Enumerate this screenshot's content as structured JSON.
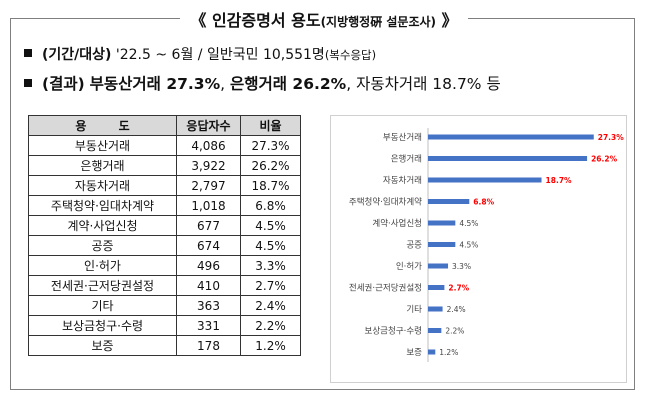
{
  "title": {
    "main": "《 인감증명서 용도",
    "sub": "(지방행정硏 설문조사)",
    "close": " 》"
  },
  "lines": {
    "line1": {
      "label": "(기간/대상)",
      "period": "'22.5 ~ 6월",
      "sep": " / ",
      "target": "일반국민 10,551명",
      "note": "(복수응답)"
    },
    "line2": {
      "label": "(결과)",
      "r1": "부동산거래 27.3%",
      "r2": "은행거래 26.2%",
      "rest": "자동차거래 18.7% 등"
    }
  },
  "table": {
    "headers": [
      "용 도",
      "응답자수",
      "비율"
    ],
    "rows": [
      [
        "부동산거래",
        "4,086",
        "27.3%"
      ],
      [
        "은행거래",
        "3,922",
        "26.2%"
      ],
      [
        "자동차거래",
        "2,797",
        "18.7%"
      ],
      [
        "주택청약·임대차계약",
        "1,018",
        "6.8%"
      ],
      [
        "계약·사업신청",
        "677",
        "4.5%"
      ],
      [
        "공증",
        "674",
        "4.5%"
      ],
      [
        "인·허가",
        "496",
        "3.3%"
      ],
      [
        "전세권·근저당권설정",
        "410",
        "2.7%"
      ],
      [
        "기타",
        "363",
        "2.4%"
      ],
      [
        "보상금청구·수령",
        "331",
        "2.2%"
      ],
      [
        "보증",
        "178",
        "1.2%"
      ]
    ]
  },
  "colors": {
    "bar": "#4472c4",
    "highlight": "#ff0000",
    "normal_label": "#444444"
  },
  "chart_data": {
    "type": "bar",
    "orientation": "horizontal",
    "categories": [
      "부동산거래",
      "은행거래",
      "자동차거래",
      "주택청약·임대차계약",
      "계약·사업신청",
      "공증",
      "인·허가",
      "전세권·근저당권설정",
      "기타",
      "보상금청구·수령",
      "보증"
    ],
    "values": [
      27.3,
      26.2,
      18.7,
      6.8,
      4.5,
      4.5,
      3.3,
      2.7,
      2.4,
      2.2,
      1.2
    ],
    "labels": [
      "27.3%",
      "26.2%",
      "18.7%",
      "6.8%",
      "4.5%",
      "4.5%",
      "3.3%",
      "2.7%",
      "2.4%",
      "2.2%",
      "1.2%"
    ],
    "highlighted": [
      true,
      true,
      true,
      true,
      false,
      false,
      false,
      true,
      false,
      false,
      false
    ],
    "xlim": [
      0,
      28
    ],
    "title": "",
    "xlabel": "",
    "ylabel": ""
  }
}
